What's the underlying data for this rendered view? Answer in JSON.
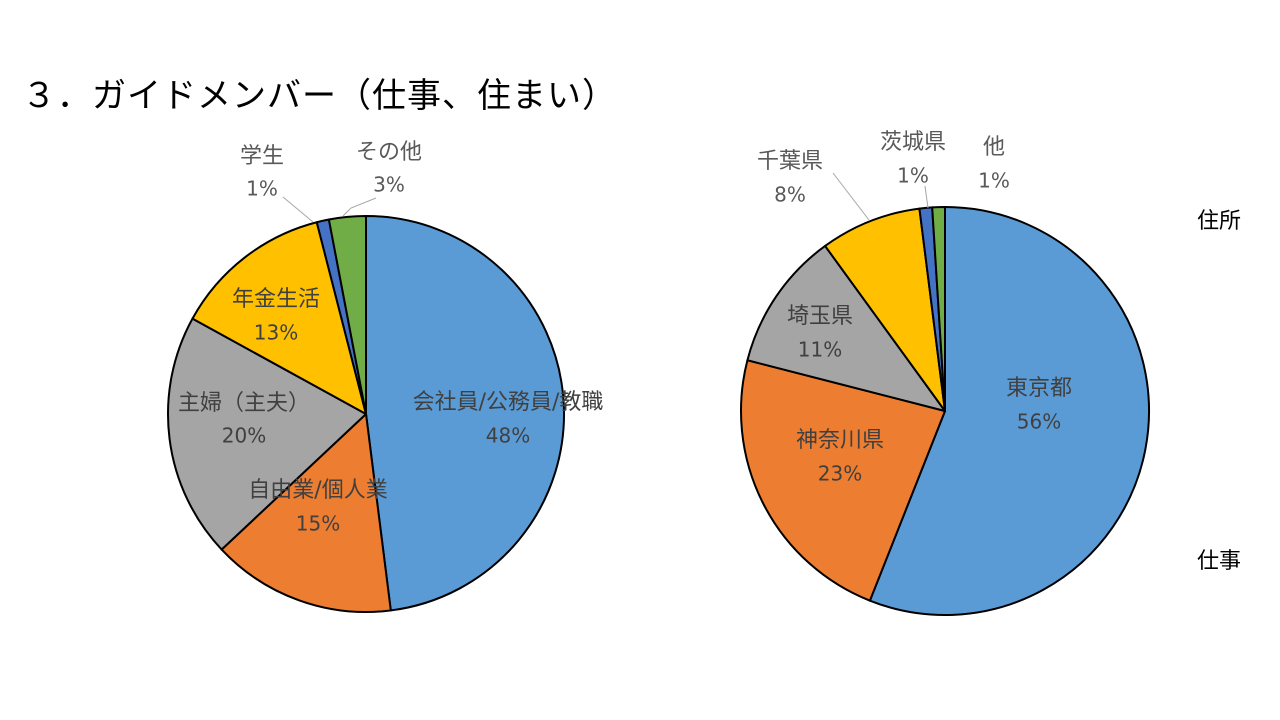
{
  "page": {
    "title": "３．ガイドメンバー（仕事、住まい）",
    "side_labels": {
      "upper": "住所",
      "lower": "仕事"
    }
  },
  "chart_data": [
    {
      "type": "pie",
      "start_angle_deg": 0,
      "slices": [
        {
          "label": "会社員/公務員/教職",
          "value": 48,
          "pct_text": "48%",
          "color": "#5B9BD5"
        },
        {
          "label": "自由業/個人業",
          "value": 15,
          "pct_text": "15%",
          "color": "#ED7D31"
        },
        {
          "label": "主婦（主夫）",
          "value": 20,
          "pct_text": "20%",
          "color": "#A5A5A5"
        },
        {
          "label": "年金生活",
          "value": 13,
          "pct_text": "13%",
          "color": "#FFC000"
        },
        {
          "label": "学生",
          "value": 1,
          "pct_text": "1%",
          "color": "#4472C4"
        },
        {
          "label": "その他",
          "value": 3,
          "pct_text": "3%",
          "color": "#70AD47"
        }
      ]
    },
    {
      "type": "pie",
      "start_angle_deg": 0,
      "slices": [
        {
          "label": "東京都",
          "value": 56,
          "pct_text": "56%",
          "color": "#5B9BD5"
        },
        {
          "label": "神奈川県",
          "value": 23,
          "pct_text": "23%",
          "color": "#ED7D31"
        },
        {
          "label": "埼玉県",
          "value": 11,
          "pct_text": "11%",
          "color": "#A5A5A5"
        },
        {
          "label": "千葉県",
          "value": 8,
          "pct_text": "8%",
          "color": "#FFC000"
        },
        {
          "label": "茨城県",
          "value": 1,
          "pct_text": "1%",
          "color": "#4472C4"
        },
        {
          "label": "他",
          "value": 1,
          "pct_text": "1%",
          "color": "#70AD47"
        }
      ]
    }
  ]
}
